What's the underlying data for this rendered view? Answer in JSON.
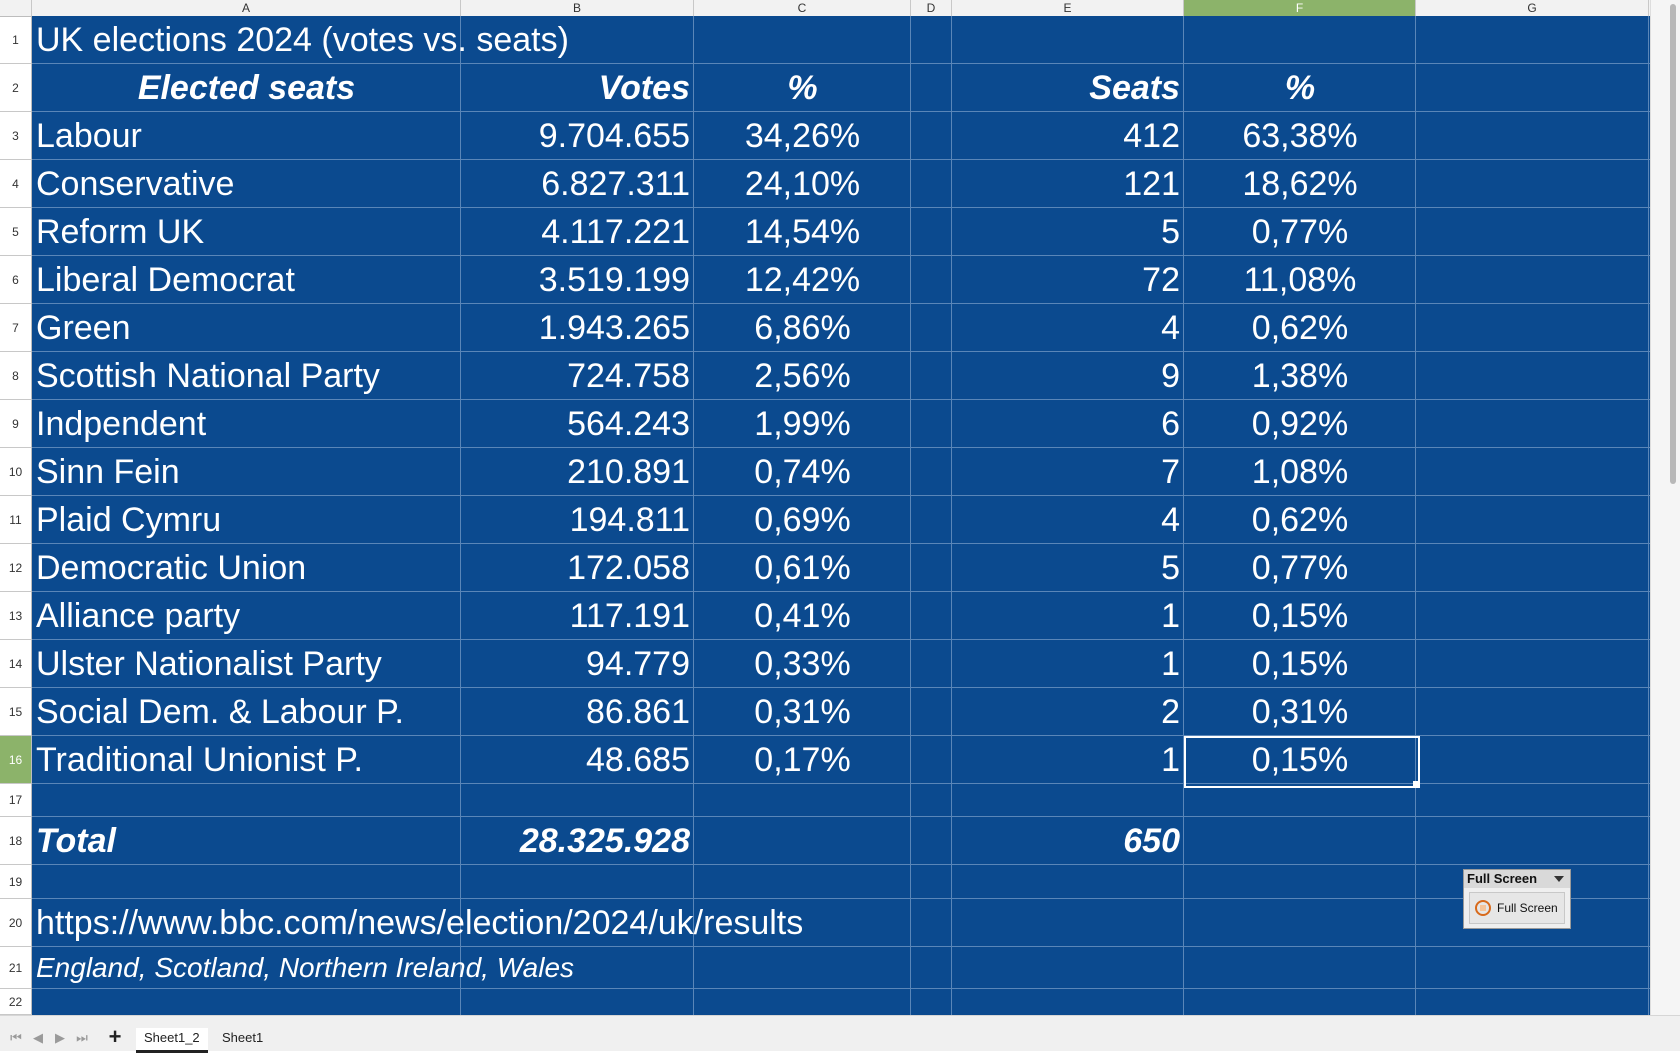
{
  "columns": [
    "A",
    "B",
    "C",
    "D",
    "E",
    "F",
    "G"
  ],
  "active_column": "F",
  "rows": [
    "1",
    "2",
    "3",
    "4",
    "5",
    "6",
    "7",
    "8",
    "9",
    "10",
    "11",
    "12",
    "13",
    "14",
    "15",
    "16",
    "17",
    "18",
    "19",
    "20",
    "21",
    "22"
  ],
  "active_row": "16",
  "sheet_bg_color": "#0b4a8f",
  "title": "UK elections 2024 (votes vs. seats)",
  "headers": {
    "party": "Elected seats",
    "votes": "Votes",
    "votes_pct": "%",
    "seats": "Seats",
    "seats_pct": "%"
  },
  "parties": [
    {
      "name": "Labour",
      "votes": "9.704.655",
      "votes_pct": "34,26%",
      "seats": "412",
      "seats_pct": "63,38%"
    },
    {
      "name": "Conservative",
      "votes": "6.827.311",
      "votes_pct": "24,10%",
      "seats": "121",
      "seats_pct": "18,62%"
    },
    {
      "name": "Reform UK",
      "votes": "4.117.221",
      "votes_pct": "14,54%",
      "seats": "5",
      "seats_pct": "0,77%"
    },
    {
      "name": "Liberal Democrat",
      "votes": "3.519.199",
      "votes_pct": "12,42%",
      "seats": "72",
      "seats_pct": "11,08%"
    },
    {
      "name": "Green",
      "votes": "1.943.265",
      "votes_pct": "6,86%",
      "seats": "4",
      "seats_pct": "0,62%"
    },
    {
      "name": "Scottish National Party",
      "votes": "724.758",
      "votes_pct": "2,56%",
      "seats": "9",
      "seats_pct": "1,38%"
    },
    {
      "name": "Indpendent",
      "votes": "564.243",
      "votes_pct": "1,99%",
      "seats": "6",
      "seats_pct": "0,92%"
    },
    {
      "name": "Sinn Fein",
      "votes": "210.891",
      "votes_pct": "0,74%",
      "seats": "7",
      "seats_pct": "1,08%"
    },
    {
      "name": "Plaid Cymru",
      "votes": "194.811",
      "votes_pct": "0,69%",
      "seats": "4",
      "seats_pct": "0,62%"
    },
    {
      "name": "Democratic Union",
      "votes": "172.058",
      "votes_pct": "0,61%",
      "seats": "5",
      "seats_pct": "0,77%"
    },
    {
      "name": "Alliance party",
      "votes": "117.191",
      "votes_pct": "0,41%",
      "seats": "1",
      "seats_pct": "0,15%"
    },
    {
      "name": "Ulster Nationalist Party",
      "votes": "94.779",
      "votes_pct": "0,33%",
      "seats": "1",
      "seats_pct": "0,15%"
    },
    {
      "name": "Social Dem. & Labour P.",
      "votes": "86.861",
      "votes_pct": "0,31%",
      "seats": "2",
      "seats_pct": "0,31%"
    },
    {
      "name": "Traditional Unionist P.",
      "votes": "48.685",
      "votes_pct": "0,17%",
      "seats": "1",
      "seats_pct": "0,15%"
    }
  ],
  "total": {
    "label": "Total",
    "votes": "28.325.928",
    "seats": "650"
  },
  "source_url": "https://www.bbc.com/news/election/2024/uk/results",
  "regions": "England, Scotland, Northern Ireland, Wales",
  "sheet_tabs": [
    {
      "label": "Sheet1_2",
      "active": true
    },
    {
      "label": "Sheet1",
      "active": false
    }
  ],
  "add_sheet_icon": "plus-icon",
  "nav_icons": [
    "first-sheet-icon",
    "prev-sheet-icon",
    "next-sheet-icon",
    "last-sheet-icon"
  ],
  "fullscreen_toolbar": {
    "title": "Full Screen",
    "button_label": "Full Screen",
    "icon": "fullscreen-icon"
  }
}
